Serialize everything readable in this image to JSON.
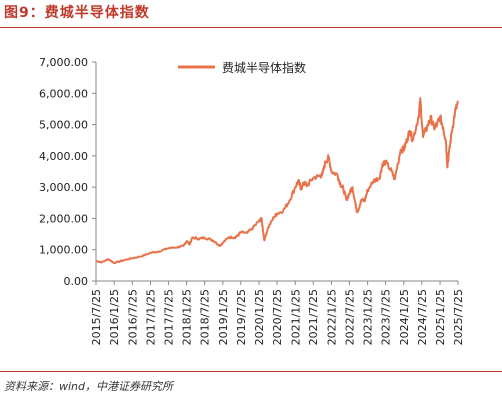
{
  "header": {
    "figure_label": "图9：",
    "figure_title": "费城半导体指数"
  },
  "source": {
    "text": "资料来源：wind，中港证券研究所"
  },
  "colors": {
    "accent": "#c0392b",
    "line": "#e8734a",
    "axis": "#888888",
    "text": "#333333"
  },
  "chart_data": {
    "type": "line",
    "title": "",
    "xlabel": "",
    "ylabel": "",
    "ylim": [
      0,
      7000
    ],
    "yticks": [
      "0.00",
      "1,000.00",
      "2,000.00",
      "3,000.00",
      "4,000.00",
      "5,000.00",
      "6,000.00",
      "7,000.00"
    ],
    "xticks": [
      "2015/7/25",
      "2016/1/25",
      "2016/7/25",
      "2017/1/25",
      "2017/7/25",
      "2018/1/25",
      "2018/7/25",
      "2019/1/25",
      "2019/7/25",
      "2020/1/25",
      "2020/7/25",
      "2021/1/25",
      "2021/7/25",
      "2022/1/25",
      "2022/7/25",
      "2023/1/25",
      "2023/7/25",
      "2024/1/25",
      "2024/7/25",
      "2025/1/25",
      "2025/7/25"
    ],
    "grid": false,
    "legend": {
      "position": "top-center",
      "entries": [
        "费城半导体指数"
      ]
    },
    "series": [
      {
        "name": "费城半导体指数",
        "color": "#e8734a",
        "points": [
          [
            "2015-07-25",
            640
          ],
          [
            "2015-09-25",
            600
          ],
          [
            "2015-11-25",
            700
          ],
          [
            "2016-01-25",
            580
          ],
          [
            "2016-04-25",
            660
          ],
          [
            "2016-07-25",
            730
          ],
          [
            "2016-10-25",
            790
          ],
          [
            "2017-01-25",
            900
          ],
          [
            "2017-04-25",
            950
          ],
          [
            "2017-07-25",
            1050
          ],
          [
            "2017-10-25",
            1080
          ],
          [
            "2017-12-25",
            1120
          ],
          [
            "2018-01-25",
            1280
          ],
          [
            "2018-02-25",
            1180
          ],
          [
            "2018-03-25",
            1390
          ],
          [
            "2018-05-25",
            1350
          ],
          [
            "2018-07-25",
            1380
          ],
          [
            "2018-09-25",
            1330
          ],
          [
            "2018-10-25",
            1280
          ],
          [
            "2018-12-25",
            1130
          ],
          [
            "2019-01-25",
            1220
          ],
          [
            "2019-03-25",
            1400
          ],
          [
            "2019-05-25",
            1390
          ],
          [
            "2019-06-25",
            1450
          ],
          [
            "2019-07-25",
            1560
          ],
          [
            "2019-09-25",
            1530
          ],
          [
            "2019-11-25",
            1700
          ],
          [
            "2020-01-25",
            1920
          ],
          [
            "2020-02-20",
            1980
          ],
          [
            "2020-03-18",
            1300
          ],
          [
            "2020-04-25",
            1700
          ],
          [
            "2020-06-25",
            2050
          ],
          [
            "2020-07-25",
            2150
          ],
          [
            "2020-09-25",
            2250
          ],
          [
            "2020-11-25",
            2550
          ],
          [
            "2021-01-25",
            3000
          ],
          [
            "2021-02-25",
            3200
          ],
          [
            "2021-03-25",
            2950
          ],
          [
            "2021-04-25",
            3150
          ],
          [
            "2021-05-25",
            3050
          ],
          [
            "2021-07-25",
            3300
          ],
          [
            "2021-09-25",
            3350
          ],
          [
            "2021-10-25",
            3400
          ],
          [
            "2021-11-25",
            3800
          ],
          [
            "2021-12-27",
            3950
          ],
          [
            "2022-01-25",
            3500
          ],
          [
            "2022-03-25",
            3400
          ],
          [
            "2022-04-25",
            3100
          ],
          [
            "2022-05-25",
            2950
          ],
          [
            "2022-06-25",
            2600
          ],
          [
            "2022-07-25",
            2800
          ],
          [
            "2022-08-25",
            3000
          ],
          [
            "2022-09-25",
            2450
          ],
          [
            "2022-10-14",
            2200
          ],
          [
            "2022-11-25",
            2600
          ],
          [
            "2022-12-25",
            2550
          ],
          [
            "2023-01-25",
            2900
          ],
          [
            "2023-03-25",
            3200
          ],
          [
            "2023-05-25",
            3300
          ],
          [
            "2023-06-25",
            3750
          ],
          [
            "2023-07-25",
            3800
          ],
          [
            "2023-09-25",
            3500
          ],
          [
            "2023-10-25",
            3250
          ],
          [
            "2023-12-25",
            4200
          ],
          [
            "2024-01-25",
            4200
          ],
          [
            "2024-02-25",
            4500
          ],
          [
            "2024-03-25",
            4800
          ],
          [
            "2024-04-25",
            4500
          ],
          [
            "2024-06-25",
            5300
          ],
          [
            "2024-07-10",
            5800
          ],
          [
            "2024-08-06",
            4600
          ],
          [
            "2024-09-25",
            5000
          ],
          [
            "2024-10-25",
            5200
          ],
          [
            "2024-11-25",
            4900
          ],
          [
            "2024-12-25",
            5000
          ],
          [
            "2025-01-25",
            5250
          ],
          [
            "2025-02-25",
            4900
          ],
          [
            "2025-03-25",
            4500
          ],
          [
            "2025-04-08",
            3650
          ],
          [
            "2025-04-25",
            4100
          ],
          [
            "2025-05-25",
            4800
          ],
          [
            "2025-06-25",
            5400
          ],
          [
            "2025-07-25",
            5700
          ]
        ]
      }
    ]
  }
}
